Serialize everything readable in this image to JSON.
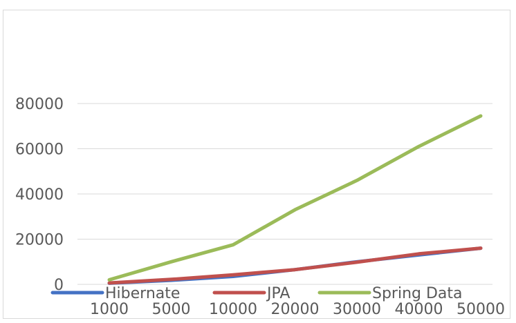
{
  "chart_data": {
    "type": "line",
    "categories": [
      "1000",
      "5000",
      "10000",
      "20000",
      "30000",
      "40000",
      "50000"
    ],
    "ylim": [
      0,
      80000
    ],
    "yticks": [
      "0",
      "20000",
      "40000",
      "60000",
      "80000"
    ],
    "grid": true,
    "legend_position": "bottom",
    "series": [
      {
        "name": "Hibernate",
        "color": "#4472c4",
        "values": [
          500,
          1800,
          3500,
          6500,
          10000,
          13000,
          16000
        ]
      },
      {
        "name": "JPA",
        "color": "#c0504d",
        "values": [
          600,
          2200,
          4200,
          6500,
          9800,
          13500,
          16000
        ]
      },
      {
        "name": "Spring Data",
        "color": "#9bbb59",
        "values": [
          2000,
          10000,
          17500,
          33000,
          46000,
          61000,
          74500
        ]
      }
    ]
  }
}
